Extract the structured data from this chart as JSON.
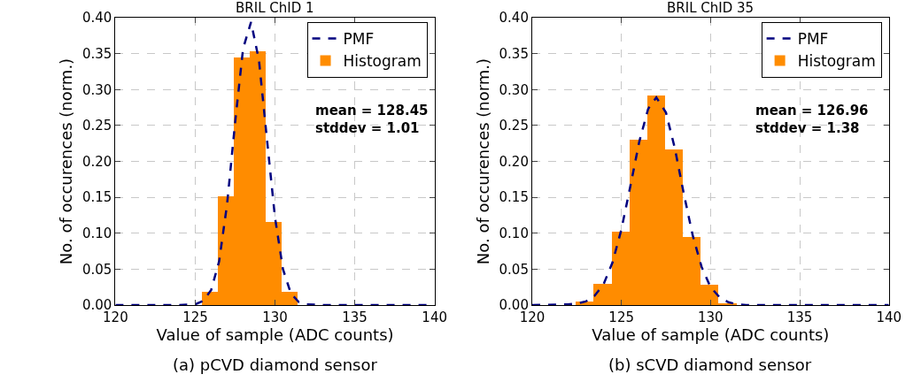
{
  "chart_data": [
    {
      "type": "histogram",
      "title": "BRIL ChID 1",
      "xlabel": "Value of sample (ADC counts)",
      "ylabel": "No. of occurences (norm.)",
      "xlim": [
        120,
        140
      ],
      "xticks": [
        120,
        125,
        130,
        135,
        140
      ],
      "ylim": [
        0,
        0.4
      ],
      "yticks": [
        {
          "value": 0,
          "label": "0.00"
        },
        0.05,
        {
          "value": 0.1,
          "label": "0.10"
        },
        0.15,
        {
          "value": 0.2,
          "label": "0.20"
        },
        0.25,
        {
          "value": 0.3,
          "label": "0.30"
        },
        0.35,
        {
          "value": 0.4,
          "label": "0.40"
        }
      ],
      "grid": true,
      "legend": "top right",
      "series": [
        {
          "name": "PMF",
          "type": "line",
          "color": "#000080",
          "line_style": "dashed",
          "marker": "none",
          "x": [
            120,
            124,
            125,
            125.5,
            126,
            126.5,
            127,
            127.5,
            128,
            128.5,
            129,
            129.5,
            130,
            130.5,
            131,
            131.5,
            132,
            133,
            140
          ],
          "values": [
            0,
            0,
            0.001,
            0.006,
            0.021,
            0.061,
            0.141,
            0.254,
            0.357,
            0.394,
            0.34,
            0.23,
            0.122,
            0.05,
            0.016,
            0.004,
            0.001,
            0,
            0
          ]
        },
        {
          "name": "Histogram",
          "color": "#ff8c00",
          "bins": [
            125.45,
            126.45,
            127.45,
            128.45,
            129.45,
            130.45,
            131.45
          ],
          "values": [
            0.019,
            0.151,
            0.345,
            0.353,
            0.116,
            0.018
          ]
        }
      ],
      "annotations": [
        "mean = 128.45\nstddev = 1.01",
        "(a) pCVD diamond sensor"
      ]
    },
    {
      "type": "histogram",
      "title": "BRIL ChID 35",
      "xlabel": "Value of sample (ADC counts)",
      "ylabel": "No. of occurences (norm.)",
      "xlim": [
        120,
        140
      ],
      "xticks": [
        120,
        125,
        130,
        135,
        140
      ],
      "ylim": [
        0,
        0.4
      ],
      "yticks": [
        {
          "value": 0,
          "label": "0.00"
        },
        0.05,
        {
          "value": 0.1,
          "label": "0.10"
        },
        0.15,
        {
          "value": 0.2,
          "label": "0.20"
        },
        0.25,
        {
          "value": 0.3,
          "label": "0.30"
        },
        0.35,
        {
          "value": 0.4,
          "label": "0.40"
        }
      ],
      "grid": true,
      "legend": "top right",
      "series": [
        {
          "name": "PMF",
          "type": "line",
          "color": "#000080",
          "line_style": "dashed",
          "marker": "none",
          "x": [
            120,
            122,
            122.5,
            123,
            123.5,
            124,
            124.5,
            125,
            125.5,
            126,
            126.5,
            126.96,
            127.5,
            128,
            128.5,
            129,
            129.5,
            130,
            130.5,
            131,
            131.5,
            132,
            140
          ],
          "values": [
            0,
            0.001,
            0.002,
            0.005,
            0.013,
            0.029,
            0.059,
            0.105,
            0.165,
            0.227,
            0.273,
            0.289,
            0.268,
            0.218,
            0.155,
            0.097,
            0.053,
            0.025,
            0.011,
            0.004,
            0.001,
            0,
            0
          ]
        },
        {
          "name": "Histogram",
          "color": "#ff8c00",
          "bins": [
            122.45,
            123.45,
            124.45,
            125.45,
            126.45,
            127.45,
            128.45,
            129.45,
            130.45,
            131.45
          ],
          "values": [
            0.005,
            0.03,
            0.102,
            0.23,
            0.292,
            0.217,
            0.095,
            0.028,
            0.003
          ]
        }
      ],
      "annotations": [
        "mean = 126.96\nstddev = 1.38",
        "(b) sCVD diamond sensor"
      ]
    }
  ]
}
